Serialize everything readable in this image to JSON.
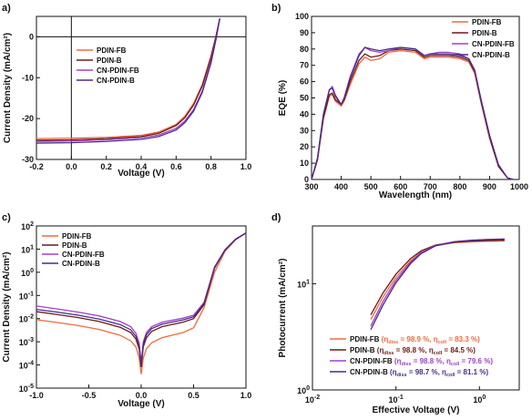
{
  "colors": {
    "PDIN-FB": "#f26a3b",
    "PDIN-B": "#6b1a1a",
    "CN-PDIN-FB": "#a040c8",
    "CN-PDIN-B": "#4a2a8c"
  },
  "chart_data": [
    {
      "panel": "a)",
      "type": "line",
      "xlabel": "Voltage (V)",
      "ylabel": "Current Density (mA/cm²)",
      "xlim": [
        -0.2,
        1.0
      ],
      "ylim": [
        -30,
        5
      ],
      "xticks": [
        -0.2,
        0.0,
        0.2,
        0.4,
        0.6,
        0.8,
        1.0
      ],
      "xticklabels": [
        "-0.2",
        "0.0",
        "0.2",
        "0.4",
        "0.6",
        "0.8",
        "1.0"
      ],
      "yticks": [
        0,
        -10,
        -20,
        -30
      ],
      "yticklabels": [
        "0",
        "-10",
        "-20",
        "-30"
      ],
      "zero_lines": true,
      "legend": "top-left",
      "series": [
        {
          "name": "PDIN-FB",
          "x": [
            -0.2,
            0.0,
            0.2,
            0.4,
            0.5,
            0.6,
            0.65,
            0.7,
            0.75,
            0.8,
            0.83,
            0.85
          ],
          "y": [
            -24.9,
            -24.8,
            -24.6,
            -24.1,
            -23.3,
            -21.4,
            -19.4,
            -16.3,
            -11.6,
            -4.6,
            0.5,
            4.5
          ]
        },
        {
          "name": "PDIN-B",
          "x": [
            -0.2,
            0.0,
            0.2,
            0.4,
            0.5,
            0.6,
            0.65,
            0.7,
            0.75,
            0.8,
            0.83,
            0.85
          ],
          "y": [
            -25.3,
            -25.2,
            -24.9,
            -24.4,
            -23.6,
            -21.7,
            -19.8,
            -16.7,
            -12.0,
            -5.0,
            0.5,
            4.5
          ]
        },
        {
          "name": "CN-PDIN-FB",
          "x": [
            -0.2,
            0.0,
            0.2,
            0.4,
            0.5,
            0.6,
            0.65,
            0.7,
            0.75,
            0.8,
            0.83,
            0.85
          ],
          "y": [
            -25.6,
            -25.5,
            -25.2,
            -24.7,
            -24.0,
            -22.4,
            -20.6,
            -17.8,
            -13.2,
            -6.0,
            0.0,
            4.5
          ]
        },
        {
          "name": "CN-PDIN-B",
          "x": [
            -0.2,
            0.0,
            0.2,
            0.4,
            0.5,
            0.6,
            0.65,
            0.7,
            0.75,
            0.8,
            0.83,
            0.85
          ],
          "y": [
            -26.0,
            -25.9,
            -25.6,
            -25.1,
            -24.4,
            -22.8,
            -21.0,
            -18.2,
            -13.6,
            -6.4,
            -0.3,
            4.5
          ]
        }
      ]
    },
    {
      "panel": "b)",
      "type": "line",
      "xlabel": "Wavelength (nm)",
      "ylabel": "EQE (%)",
      "xlim": [
        300,
        1000
      ],
      "ylim": [
        0,
        100
      ],
      "xticks": [
        300,
        400,
        500,
        600,
        700,
        800,
        900,
        1000
      ],
      "xticklabels": [
        "300",
        "400",
        "500",
        "600",
        "700",
        "800",
        "900",
        "1000"
      ],
      "yticks": [
        0,
        10,
        20,
        30,
        40,
        50,
        60,
        70,
        80,
        90,
        100
      ],
      "yticklabels": [
        "0",
        "10",
        "20",
        "30",
        "40",
        "50",
        "60",
        "70",
        "80",
        "90",
        "100"
      ],
      "legend": "top-right",
      "series": [
        {
          "name": "PDIN-FB",
          "x": [
            300,
            320,
            340,
            360,
            370,
            380,
            400,
            410,
            430,
            460,
            480,
            500,
            530,
            560,
            600,
            650,
            680,
            700,
            730,
            760,
            800,
            830,
            850,
            870,
            900,
            930,
            960,
            980
          ],
          "y": [
            0,
            12,
            37,
            51,
            52,
            48,
            45,
            48,
            58,
            71,
            75,
            73,
            74,
            78,
            79,
            78,
            74,
            75,
            75,
            75,
            74,
            72,
            65,
            48,
            25,
            8,
            1,
            0
          ]
        },
        {
          "name": "PDIN-B",
          "x": [
            300,
            320,
            340,
            360,
            370,
            380,
            400,
            410,
            430,
            460,
            480,
            500,
            530,
            560,
            600,
            650,
            680,
            700,
            730,
            760,
            800,
            830,
            850,
            870,
            900,
            930,
            960,
            980
          ],
          "y": [
            0,
            12,
            38,
            52,
            53,
            49,
            46,
            49,
            60,
            73,
            77,
            75,
            76,
            79,
            80,
            79,
            75,
            76,
            76,
            76,
            75,
            73,
            66,
            49,
            26,
            8,
            1,
            0
          ]
        },
        {
          "name": "CN-PDIN-FB",
          "x": [
            300,
            320,
            340,
            360,
            370,
            380,
            400,
            410,
            430,
            460,
            480,
            500,
            530,
            560,
            600,
            650,
            680,
            700,
            730,
            760,
            800,
            830,
            850,
            870,
            900,
            930,
            960,
            980
          ],
          "y": [
            0,
            13,
            40,
            55,
            57,
            52,
            46,
            50,
            63,
            77,
            81,
            79,
            78,
            79,
            81,
            80,
            76,
            77,
            78,
            78,
            77,
            74,
            67,
            50,
            27,
            9,
            1,
            0
          ]
        },
        {
          "name": "CN-PDIN-B",
          "x": [
            300,
            320,
            340,
            360,
            370,
            380,
            400,
            410,
            430,
            460,
            480,
            500,
            530,
            560,
            600,
            650,
            680,
            700,
            730,
            760,
            800,
            830,
            850,
            870,
            900,
            930,
            960,
            980
          ],
          "y": [
            0,
            13,
            40,
            55,
            56,
            51,
            46,
            50,
            62,
            76,
            81,
            80,
            79,
            80,
            81,
            80,
            76,
            77,
            77,
            77,
            76,
            74,
            67,
            50,
            27,
            9,
            1,
            0
          ]
        }
      ]
    },
    {
      "panel": "c)",
      "type": "line",
      "xlabel": "Voltage (V)",
      "ylabel": "Current Density (mA/cm²)",
      "xlim": [
        -1.0,
        1.0
      ],
      "ylim_exp": [
        -5,
        2
      ],
      "yscale": "log",
      "xticks": [
        -1.0,
        -0.5,
        0.0,
        0.5,
        1.0
      ],
      "xticklabels": [
        "-1.0",
        "-0.5",
        "0.0",
        "0.5",
        "1.0"
      ],
      "ytick_exps": [
        2,
        1,
        0,
        -1,
        -2,
        -3,
        -4,
        -5
      ],
      "legend": "top-left",
      "series": [
        {
          "name": "PDIN-FB",
          "x": [
            -1.0,
            -0.8,
            -0.6,
            -0.4,
            -0.2,
            -0.1,
            -0.05,
            -0.02,
            0.0,
            0.02,
            0.05,
            0.1,
            0.2,
            0.4,
            0.5,
            0.6,
            0.7,
            0.8,
            0.9,
            1.0
          ],
          "y": [
            0.009,
            0.0068,
            0.005,
            0.0034,
            0.0019,
            0.0011,
            0.0006,
            0.0002,
            4e-05,
            0.0002,
            0.0005,
            0.0009,
            0.0015,
            0.0025,
            0.004,
            0.03,
            1.0,
            8.0,
            25.0,
            50.0
          ]
        },
        {
          "name": "PDIN-B",
          "x": [
            -1.0,
            -0.8,
            -0.6,
            -0.4,
            -0.2,
            -0.1,
            -0.05,
            -0.02,
            0.0,
            0.02,
            0.05,
            0.1,
            0.2,
            0.4,
            0.5,
            0.6,
            0.7,
            0.8,
            0.9,
            1.0
          ],
          "y": [
            0.02,
            0.015,
            0.011,
            0.0075,
            0.0042,
            0.0025,
            0.0013,
            0.0005,
            8e-05,
            0.0006,
            0.0015,
            0.0028,
            0.0045,
            0.007,
            0.01,
            0.04,
            1.5,
            9.0,
            26.0,
            50.0
          ]
        },
        {
          "name": "CN-PDIN-FB",
          "x": [
            -1.0,
            -0.8,
            -0.6,
            -0.4,
            -0.2,
            -0.1,
            -0.05,
            -0.02,
            0.0,
            0.02,
            0.05,
            0.1,
            0.2,
            0.4,
            0.5,
            0.6,
            0.7,
            0.8,
            0.9,
            1.0
          ],
          "y": [
            0.035,
            0.026,
            0.019,
            0.013,
            0.0075,
            0.0045,
            0.0023,
            0.0009,
            0.00012,
            0.001,
            0.0025,
            0.0045,
            0.007,
            0.0105,
            0.014,
            0.05,
            1.7,
            9.5,
            27.0,
            50.0
          ]
        },
        {
          "name": "CN-PDIN-B",
          "x": [
            -1.0,
            -0.8,
            -0.6,
            -0.4,
            -0.2,
            -0.1,
            -0.05,
            -0.02,
            0.0,
            0.02,
            0.05,
            0.1,
            0.2,
            0.4,
            0.5,
            0.6,
            0.7,
            0.8,
            0.9,
            1.0
          ],
          "y": [
            0.025,
            0.019,
            0.014,
            0.0095,
            0.0055,
            0.0033,
            0.0017,
            0.0007,
            0.0001,
            0.0008,
            0.002,
            0.0037,
            0.0058,
            0.0088,
            0.012,
            0.045,
            1.6,
            9.2,
            26.5,
            50.0
          ]
        }
      ]
    },
    {
      "panel": "d)",
      "type": "line",
      "xlabel": "Effective Voltage (V)",
      "ylabel": "Photocurrent (mA/cm²)",
      "xscale": "log",
      "yscale": "log",
      "xlim_exp": [
        -2,
        0.4771
      ],
      "ylim_exp": [
        0,
        1.5441
      ],
      "xtick_exps": [
        -2,
        -1,
        0
      ],
      "ytick_exps": [
        0,
        1
      ],
      "legend": "bottom-right",
      "legend_entries": [
        {
          "name": "PDIN-FB",
          "eta_diss": "98.9 %",
          "eta_coll": "83.3 %"
        },
        {
          "name": "PDIN-B",
          "eta_diss": "98.8 %",
          "eta_coll": "84.5 %"
        },
        {
          "name": "CN-PDIN-FB",
          "eta_diss": "98.8 %",
          "eta_coll": "79.6 %"
        },
        {
          "name": "CN-PDIN-B",
          "eta_diss": "98.7 %",
          "eta_coll": "81.1 %"
        }
      ],
      "eta_diss_symbol": "η",
      "eta_diss_sub": "diss",
      "eta_coll_symbol": "η",
      "eta_coll_sub": "coll",
      "series": [
        {
          "name": "PDIN-FB",
          "x": [
            0.05,
            0.07,
            0.1,
            0.15,
            0.2,
            0.3,
            0.5,
            0.8,
            1.2,
            2.0
          ],
          "y": [
            4.6,
            7.5,
            11.5,
            16.5,
            19.8,
            22.8,
            24.3,
            24.8,
            25.1,
            25.3
          ]
        },
        {
          "name": "PDIN-B",
          "x": [
            0.05,
            0.07,
            0.1,
            0.15,
            0.2,
            0.3,
            0.5,
            0.8,
            1.2,
            2.0
          ],
          "y": [
            5.1,
            8.2,
            12.3,
            17.3,
            20.4,
            23.2,
            24.6,
            25.2,
            25.5,
            25.7
          ]
        },
        {
          "name": "CN-PDIN-FB",
          "x": [
            0.05,
            0.07,
            0.1,
            0.15,
            0.2,
            0.3,
            0.5,
            0.8,
            1.2,
            2.0
          ],
          "y": [
            4.0,
            6.8,
            10.8,
            16.0,
            19.6,
            23.0,
            24.9,
            25.7,
            26.1,
            26.4
          ]
        },
        {
          "name": "CN-PDIN-B",
          "x": [
            0.05,
            0.07,
            0.1,
            0.15,
            0.2,
            0.3,
            0.5,
            0.8,
            1.2,
            2.0
          ],
          "y": [
            3.7,
            6.3,
            10.2,
            15.5,
            19.2,
            22.8,
            24.8,
            25.6,
            26.0,
            26.3
          ]
        }
      ]
    }
  ]
}
